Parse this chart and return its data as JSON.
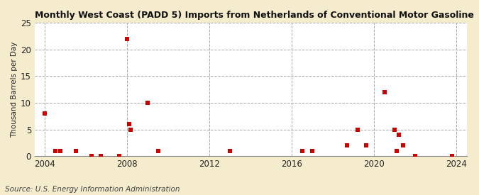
{
  "title": "Monthly West Coast (PADD 5) Imports from Netherlands of Conventional Motor Gasoline",
  "ylabel": "Thousand Barrels per Day",
  "source": "Source: U.S. Energy Information Administration",
  "figure_bg": "#f5ecce",
  "plot_bg": "#ffffff",
  "marker_color": "#cc0000",
  "xlim": [
    2003.5,
    2024.5
  ],
  "ylim": [
    0,
    25
  ],
  "yticks": [
    0,
    5,
    10,
    15,
    20,
    25
  ],
  "xticks": [
    2004,
    2008,
    2012,
    2016,
    2020,
    2024
  ],
  "data_points": [
    [
      2004.0,
      8.0
    ],
    [
      2004.5,
      1.0
    ],
    [
      2004.75,
      1.0
    ],
    [
      2005.5,
      1.0
    ],
    [
      2006.25,
      0.0
    ],
    [
      2006.7,
      0.0
    ],
    [
      2007.6,
      0.0
    ],
    [
      2008.0,
      22.0
    ],
    [
      2008.08,
      6.0
    ],
    [
      2008.17,
      5.0
    ],
    [
      2009.0,
      10.0
    ],
    [
      2009.5,
      1.0
    ],
    [
      2013.0,
      1.0
    ],
    [
      2016.5,
      1.0
    ],
    [
      2017.0,
      1.0
    ],
    [
      2018.7,
      2.0
    ],
    [
      2019.2,
      5.0
    ],
    [
      2019.6,
      2.0
    ],
    [
      2020.5,
      12.0
    ],
    [
      2021.0,
      5.0
    ],
    [
      2021.1,
      1.0
    ],
    [
      2021.2,
      4.0
    ],
    [
      2021.4,
      2.0
    ],
    [
      2022.0,
      0.0
    ],
    [
      2023.8,
      0.0
    ]
  ]
}
